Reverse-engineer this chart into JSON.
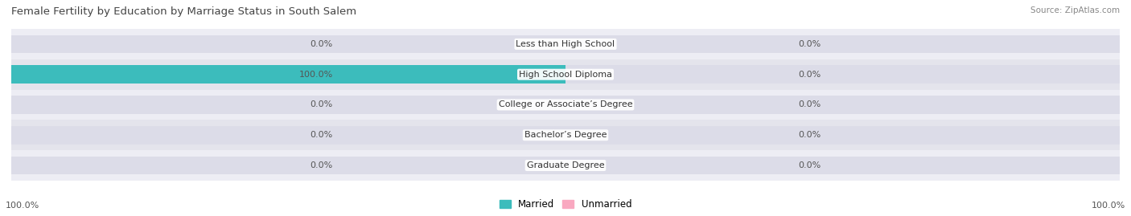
{
  "title": "Female Fertility by Education by Marriage Status in South Salem",
  "source_text": "Source: ZipAtlas.com",
  "categories": [
    "Less than High School",
    "High School Diploma",
    "College or Associate’s Degree",
    "Bachelor’s Degree",
    "Graduate Degree"
  ],
  "married_values": [
    0.0,
    100.0,
    0.0,
    0.0,
    0.0
  ],
  "unmarried_values": [
    0.0,
    0.0,
    0.0,
    0.0,
    0.0
  ],
  "married_color": "#3cbcbc",
  "unmarried_color": "#f9a8c0",
  "bar_bg_color": "#dcdce8",
  "row_bg_even": "#ededf4",
  "row_bg_odd": "#e4e4ec",
  "title_color": "#444444",
  "value_color": "#555555",
  "source_color": "#888888",
  "bar_height": 0.6,
  "figsize": [
    14.06,
    2.69
  ],
  "dpi": 100,
  "legend_married": "Married",
  "legend_unmarried": "Unmarried",
  "left_axis_label": "100.0%",
  "right_axis_label": "100.0%",
  "max_val": 100
}
